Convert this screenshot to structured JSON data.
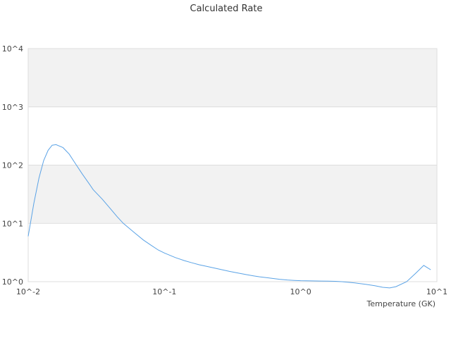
{
  "chart_data": {
    "type": "line",
    "title": "Calculated Rate",
    "xlabel": "Temperature (GK)",
    "ylabel": "",
    "x_scale": "log",
    "y_scale": "log",
    "xlim": [
      0.01,
      10
    ],
    "ylim": [
      1,
      10000
    ],
    "x_ticks": [
      "10^-2",
      "10^-1",
      "10^0",
      "10^1"
    ],
    "y_ticks": [
      "10^0",
      "10^1",
      "10^2",
      "10^3",
      "10^4"
    ],
    "grid": "alternating horizontal bands",
    "legend": "none",
    "line_color": "#5ba3e6",
    "band_color": "#f2f2f2",
    "series": [
      {
        "x": [
          0.01,
          0.011,
          0.012,
          0.013,
          0.014,
          0.015,
          0.016,
          0.018,
          0.02,
          0.022,
          0.025,
          0.028,
          0.03,
          0.035,
          0.04,
          0.045,
          0.05,
          0.06,
          0.07,
          0.08,
          0.09,
          0.1,
          0.12,
          0.14,
          0.16,
          0.18,
          0.2,
          0.25,
          0.3,
          0.35,
          0.4,
          0.45,
          0.5,
          0.6,
          0.7,
          0.8,
          0.9,
          1.0,
          1.2,
          1.4,
          1.6,
          1.8,
          2.0,
          2.5,
          3.0,
          3.5,
          4.0,
          4.5,
          5.0,
          6.0,
          7.0,
          8.0,
          9.0
        ],
        "y": [
          6,
          22,
          60,
          120,
          180,
          220,
          225,
          200,
          155,
          110,
          70,
          48,
          38,
          26,
          18,
          13,
          10,
          7,
          5.2,
          4.2,
          3.5,
          3.1,
          2.6,
          2.3,
          2.1,
          1.95,
          1.85,
          1.65,
          1.5,
          1.4,
          1.32,
          1.26,
          1.21,
          1.15,
          1.1,
          1.07,
          1.05,
          1.04,
          1.03,
          1.025,
          1.02,
          1.015,
          1.0,
          0.95,
          0.9,
          0.85,
          0.8,
          0.78,
          0.82,
          1.0,
          1.4,
          1.9,
          1.6
        ]
      }
    ]
  }
}
